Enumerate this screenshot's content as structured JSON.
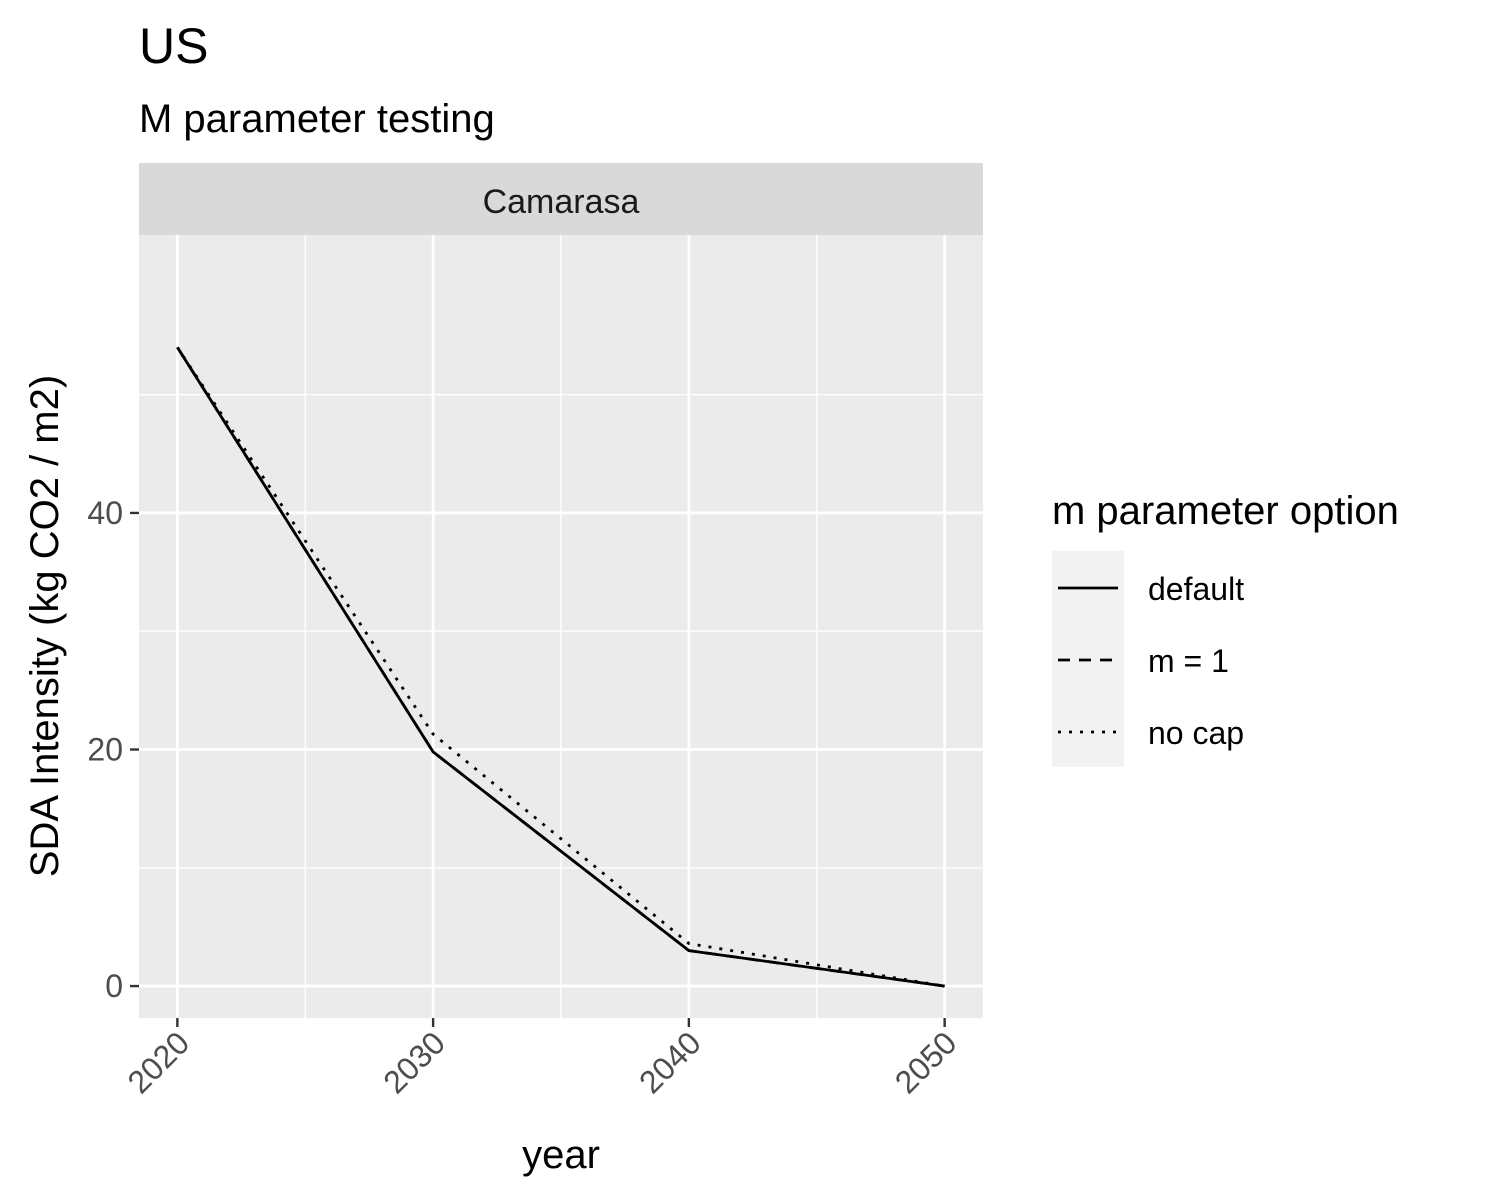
{
  "chart_data": {
    "type": "line",
    "title": "US",
    "subtitle": "M parameter testing",
    "facet_label": "Camarasa",
    "xlabel": "year",
    "ylabel": "SDA Intensity (kg CO2 / m2)",
    "xlim": [
      2018.5,
      2051.5
    ],
    "ylim": [
      -2.7,
      63.5
    ],
    "x_ticks": [
      2020,
      2030,
      2040,
      2050
    ],
    "x_tick_labels": [
      "2020",
      "2030",
      "2040",
      "2050"
    ],
    "y_ticks": [
      0,
      20,
      40
    ],
    "y_tick_labels": [
      "0",
      "20",
      "40"
    ],
    "x_minor": [
      2025,
      2035,
      2045
    ],
    "y_minor": [
      10,
      30,
      50
    ],
    "grid": true,
    "legend": {
      "title": "m parameter option",
      "position": "right"
    },
    "series": [
      {
        "name": "default",
        "linetype": "solid",
        "x": [
          2020,
          2030,
          2040,
          2050
        ],
        "y": [
          54.0,
          19.8,
          3.0,
          0.0
        ]
      },
      {
        "name": "m = 1",
        "linetype": "dashed",
        "x": [
          2020,
          2030,
          2040,
          2050
        ],
        "y": [
          54.0,
          19.8,
          3.0,
          0.0
        ]
      },
      {
        "name": "no cap",
        "linetype": "dotted",
        "x": [
          2020,
          2030,
          2040,
          2050
        ],
        "y": [
          54.0,
          21.3,
          3.6,
          0.0
        ]
      }
    ]
  }
}
